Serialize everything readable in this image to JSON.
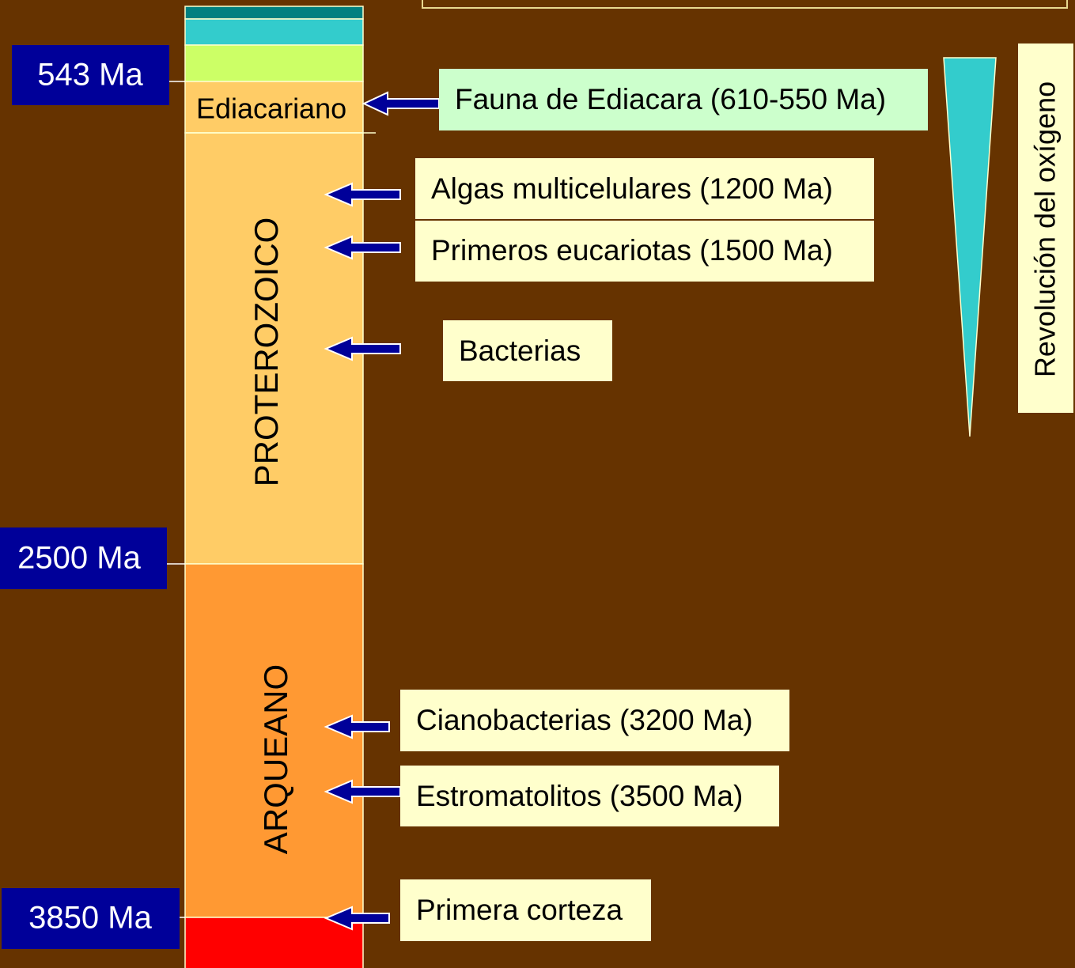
{
  "time_labels": [
    "543 Ma",
    "2500 Ma",
    "3850 Ma"
  ],
  "eras": [
    "Ediacariano",
    "PROTEROZOICO",
    "ARQUEANO"
  ],
  "events": [
    "Fauna de Ediacara (610-550 Ma)",
    "Algas multicelulares (1200 Ma)",
    "Primeros eucariotas (1500 Ma)",
    "Bacterias",
    "Cianobacterias (3200 Ma)",
    "Estromatolitos (3500 Ma)",
    "Primera corteza"
  ],
  "side_label": "Revolución del oxígeno"
}
